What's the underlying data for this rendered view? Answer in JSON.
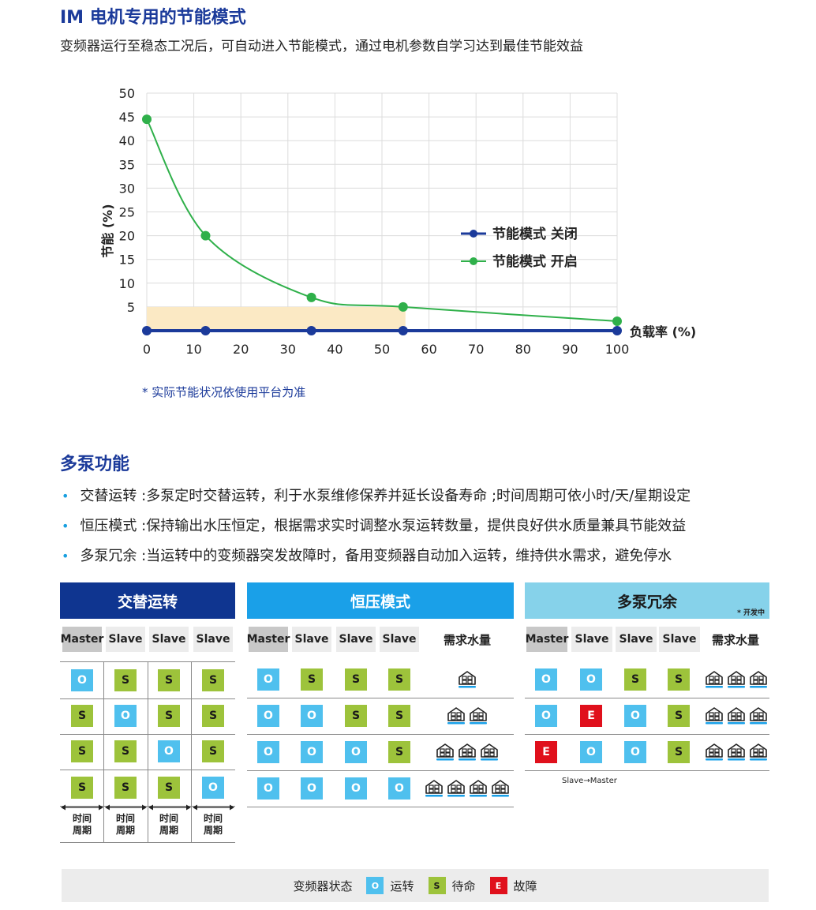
{
  "section1": {
    "title": "IM 电机专用的节能模式",
    "subtitle": "变频器运行至稳态工况后，可自动进入节能模式，通过电机参数自学习达到最佳节能效益",
    "note": "* 实际节能状况依使用平台为准"
  },
  "chart_data": {
    "type": "line",
    "xlabel": "负载率 (%)",
    "ylabel": "节能 (%)",
    "xlim": [
      0,
      100
    ],
    "ylim": [
      0,
      50
    ],
    "xticks": [
      "0",
      "10",
      "20",
      "30",
      "40",
      "50",
      "60",
      "70",
      "80",
      "90",
      "100"
    ],
    "yticks": [
      "5",
      "10",
      "15",
      "20",
      "25",
      "30",
      "35",
      "40",
      "45",
      "50"
    ],
    "grid": true,
    "legend_position": "right",
    "highlight_region": {
      "x": [
        0,
        55
      ],
      "y": [
        0,
        5
      ]
    },
    "series": [
      {
        "name": "节能模式 关闭",
        "color": "#1b3a9a",
        "x": [
          0,
          12.5,
          35,
          54.5,
          100
        ],
        "y": [
          0,
          0,
          0,
          0,
          0
        ]
      },
      {
        "name": "节能模式 开启",
        "color": "#2fb04a",
        "x": [
          0,
          12.5,
          35,
          54.5,
          100
        ],
        "y": [
          44.5,
          20,
          7,
          5,
          2
        ]
      }
    ]
  },
  "section2": {
    "title": "多泵功能",
    "bullets": [
      "交替运转 :多泵定时交替运转，利于水泵维修保养并延长设备寿命 ;时间周期可依小时/天/星期设定",
      "恒压模式 :保持输出水压恒定，根据需求实时调整水泵运转数量，提供良好供水质量兼具节能效益",
      "多泵冗余 :当运转中的变频器突发故障时，备用变频器自动加入运转，维持供水需求，避免停水"
    ]
  },
  "panels": {
    "alternate": {
      "title": "交替运转",
      "color": "#0f3590",
      "headers": [
        "Master",
        "Slave",
        "Slave",
        "Slave"
      ],
      "rows": [
        [
          "O",
          "S",
          "S",
          "S"
        ],
        [
          "S",
          "O",
          "S",
          "S"
        ],
        [
          "S",
          "S",
          "O",
          "S"
        ],
        [
          "S",
          "S",
          "S",
          "O"
        ]
      ],
      "cycle_label": "时间\n周期",
      "cycle_top": "时间",
      "cycle_bottom": "周期"
    },
    "constant": {
      "title": "恒压模式",
      "color": "#1aa0e8",
      "headers": [
        "Master",
        "Slave",
        "Slave",
        "Slave"
      ],
      "demand_label": "需求水量",
      "rows": [
        [
          "O",
          "S",
          "S",
          "S"
        ],
        [
          "O",
          "O",
          "S",
          "S"
        ],
        [
          "O",
          "O",
          "O",
          "S"
        ],
        [
          "O",
          "O",
          "O",
          "O"
        ]
      ],
      "demand": [
        1,
        2,
        3,
        4
      ]
    },
    "redundant": {
      "title": "多泵冗余",
      "color": "#86d2ea",
      "note": "* 开发中",
      "headers": [
        "Master",
        "Slave",
        "Slave",
        "Slave"
      ],
      "demand_label": "需求水量",
      "rows": [
        [
          "O",
          "O",
          "S",
          "S"
        ],
        [
          "O",
          "E",
          "O",
          "S"
        ],
        [
          "E",
          "O",
          "O",
          "S"
        ]
      ],
      "demand": [
        3,
        3,
        3
      ],
      "footnote": "Slave→Master"
    }
  },
  "legend": {
    "label": "变频器状态",
    "items": [
      {
        "code": "O",
        "text": "运转"
      },
      {
        "code": "S",
        "text": "待命"
      },
      {
        "code": "E",
        "text": "故障"
      }
    ]
  },
  "colors": {
    "run": "#4fc0ee",
    "standby": "#9dc33b",
    "fault": "#e0101c",
    "title": "#1b3a9a"
  }
}
